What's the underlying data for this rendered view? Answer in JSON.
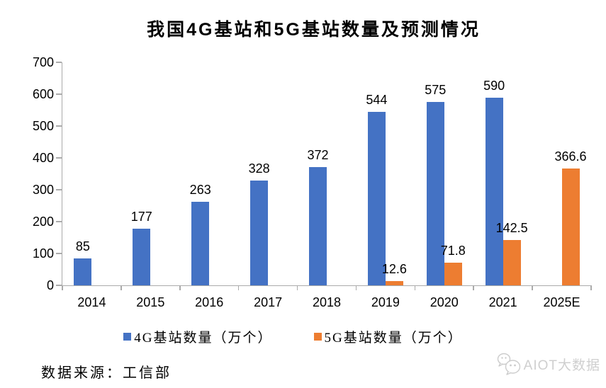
{
  "title": "我国4G基站和5G基站数量及预测情况",
  "chart_data": {
    "type": "bar",
    "categories": [
      "2014",
      "2015",
      "2016",
      "2017",
      "2018",
      "2019",
      "2020",
      "2021",
      "2025E"
    ],
    "series": [
      {
        "name": "4G基站数量（万个）",
        "color": "#4472C4",
        "values": [
          85,
          177,
          263,
          328,
          372,
          544,
          575,
          590,
          null
        ]
      },
      {
        "name": "5G基站数量（万个）",
        "color": "#ED7D31",
        "values": [
          null,
          null,
          null,
          null,
          null,
          12.6,
          71.8,
          142.5,
          366.6
        ]
      }
    ],
    "title": "我国4G基站和5G基站数量及预测情况",
    "xlabel": "",
    "ylabel": "",
    "ylim": [
      0,
      700
    ],
    "yticks": [
      0,
      100,
      200,
      300,
      400,
      500,
      600,
      700
    ],
    "grid": false,
    "legend_position": "bottom",
    "bar_value_labels": true
  },
  "footer": {
    "source_label": "数据来源：工信部"
  },
  "watermark": {
    "icon": "wechat-icon",
    "text": "AIOT大数据"
  },
  "colors": {
    "series_4g": "#4472C4",
    "series_5g": "#ED7D31",
    "axis": "#ABABAB",
    "text": "#000000",
    "watermark": "#CFCFCF",
    "background": "#FFFFFF"
  }
}
